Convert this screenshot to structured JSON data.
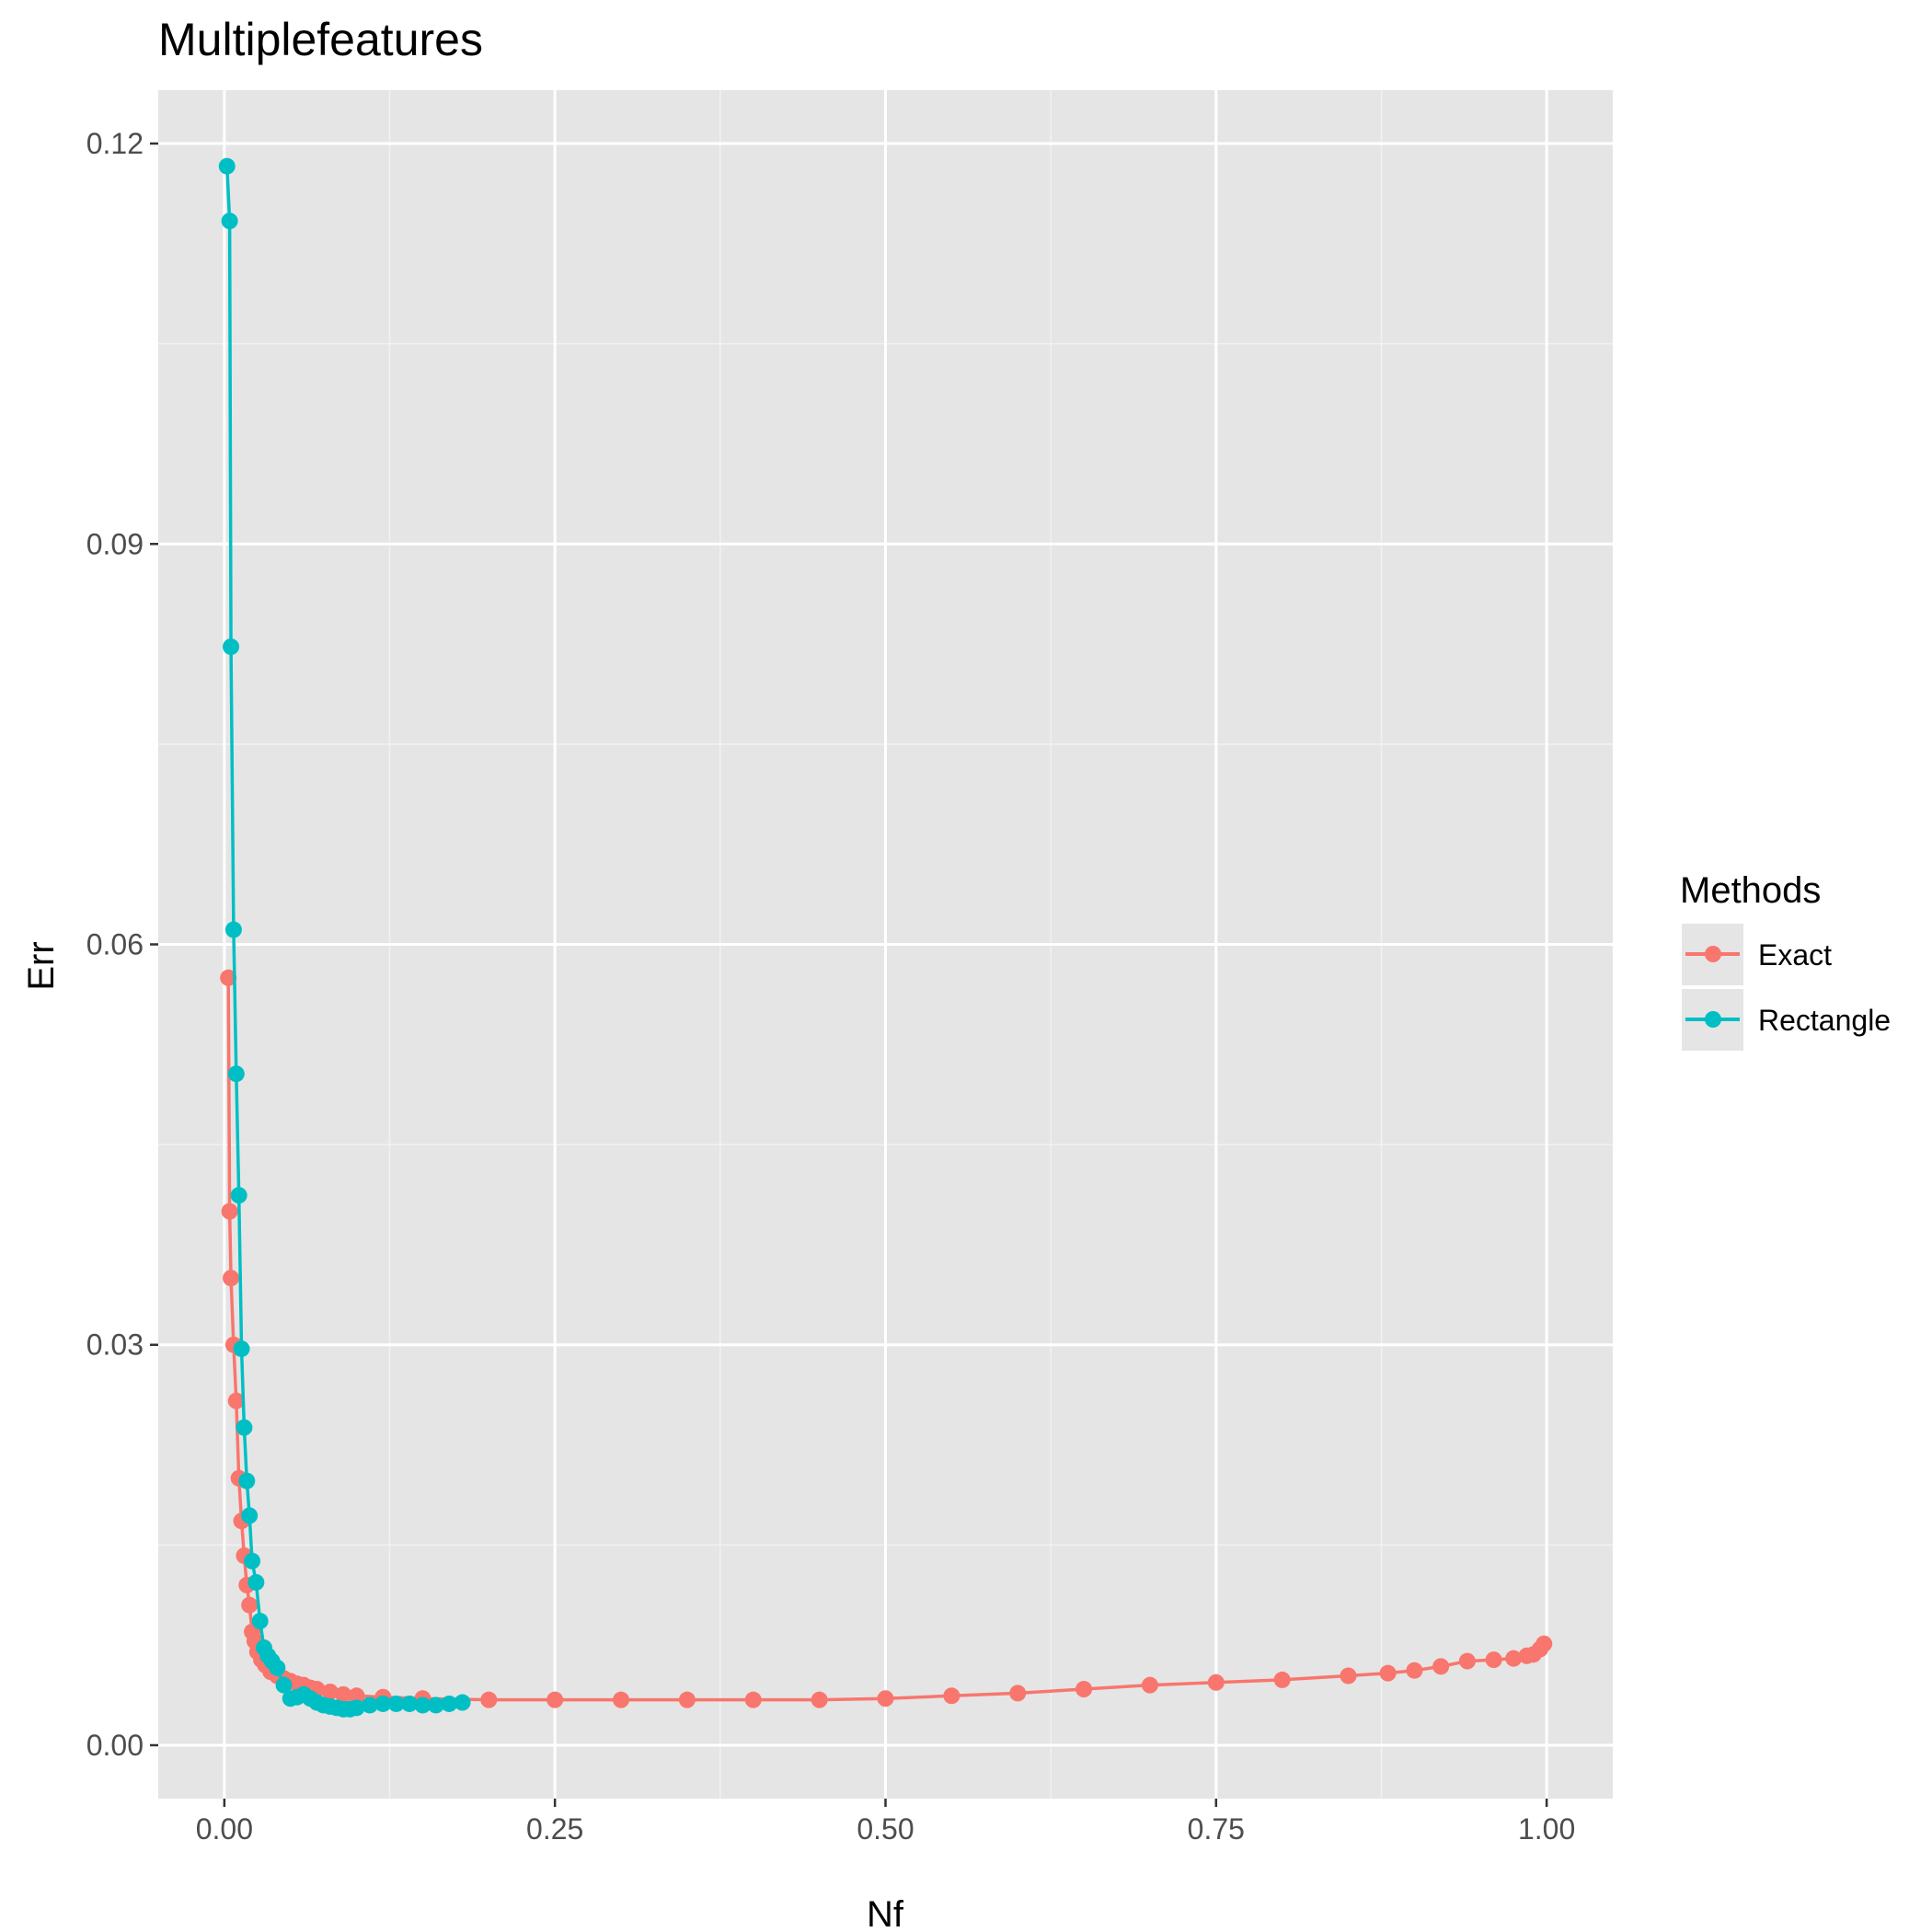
{
  "chart_data": {
    "type": "line",
    "title": "Multiplefeatures",
    "xlabel": "Nf",
    "ylabel": "Err",
    "xlim": [
      -0.05,
      1.05
    ],
    "ylim": [
      -0.004,
      0.124
    ],
    "x_ticks": [
      0.0,
      0.25,
      0.5,
      0.75,
      1.0
    ],
    "x_tick_labels": [
      "0.00",
      "0.25",
      "0.50",
      "0.75",
      "1.00"
    ],
    "y_ticks": [
      0.0,
      0.03,
      0.06,
      0.09,
      0.12
    ],
    "y_tick_labels": [
      "0.00",
      "0.03",
      "0.06",
      "0.09",
      "0.12"
    ],
    "grid": true,
    "legend": {
      "title": "Methods",
      "position": "right"
    },
    "series": [
      {
        "name": "Exact",
        "color": "#F8766D",
        "x": [
          0.003,
          0.004,
          0.005,
          0.007,
          0.009,
          0.011,
          0.013,
          0.015,
          0.017,
          0.019,
          0.021,
          0.023,
          0.025,
          0.028,
          0.031,
          0.035,
          0.04,
          0.045,
          0.05,
          0.055,
          0.06,
          0.065,
          0.07,
          0.08,
          0.09,
          0.1,
          0.12,
          0.15,
          0.2,
          0.25,
          0.3,
          0.35,
          0.4,
          0.45,
          0.5,
          0.55,
          0.6,
          0.65,
          0.7,
          0.75,
          0.8,
          0.85,
          0.88,
          0.9,
          0.92,
          0.94,
          0.96,
          0.975,
          0.985,
          0.99,
          0.995,
          0.998
        ],
        "y": [
          0.0575,
          0.04,
          0.035,
          0.03,
          0.0258,
          0.02,
          0.0168,
          0.0142,
          0.012,
          0.0105,
          0.0085,
          0.0078,
          0.007,
          0.0064,
          0.006,
          0.0055,
          0.0052,
          0.005,
          0.0048,
          0.0046,
          0.0045,
          0.0043,
          0.0042,
          0.004,
          0.0038,
          0.0037,
          0.0036,
          0.0035,
          0.0034,
          0.0034,
          0.0034,
          0.0034,
          0.0034,
          0.0034,
          0.0035,
          0.0037,
          0.0039,
          0.0042,
          0.0045,
          0.0047,
          0.0049,
          0.0052,
          0.0054,
          0.0056,
          0.0059,
          0.0063,
          0.0064,
          0.0065,
          0.0067,
          0.0068,
          0.0072,
          0.0076
        ]
      },
      {
        "name": "Rectangle",
        "color": "#00BFC4",
        "x": [
          0.002,
          0.004,
          0.005,
          0.007,
          0.009,
          0.011,
          0.013,
          0.015,
          0.017,
          0.019,
          0.021,
          0.024,
          0.027,
          0.03,
          0.033,
          0.036,
          0.04,
          0.045,
          0.05,
          0.055,
          0.06,
          0.065,
          0.07,
          0.075,
          0.08,
          0.085,
          0.09,
          0.095,
          0.1,
          0.11,
          0.12,
          0.13,
          0.14,
          0.15,
          0.16,
          0.17,
          0.18
        ],
        "y": [
          0.1183,
          0.1142,
          0.0823,
          0.0611,
          0.0503,
          0.0412,
          0.0297,
          0.0238,
          0.0198,
          0.0172,
          0.0138,
          0.0122,
          0.0093,
          0.0073,
          0.0067,
          0.0063,
          0.0058,
          0.0045,
          0.0035,
          0.0036,
          0.0038,
          0.0035,
          0.0032,
          0.003,
          0.0029,
          0.0028,
          0.0027,
          0.0027,
          0.0028,
          0.003,
          0.0031,
          0.0031,
          0.0031,
          0.003,
          0.003,
          0.0031,
          0.0032
        ]
      }
    ]
  }
}
